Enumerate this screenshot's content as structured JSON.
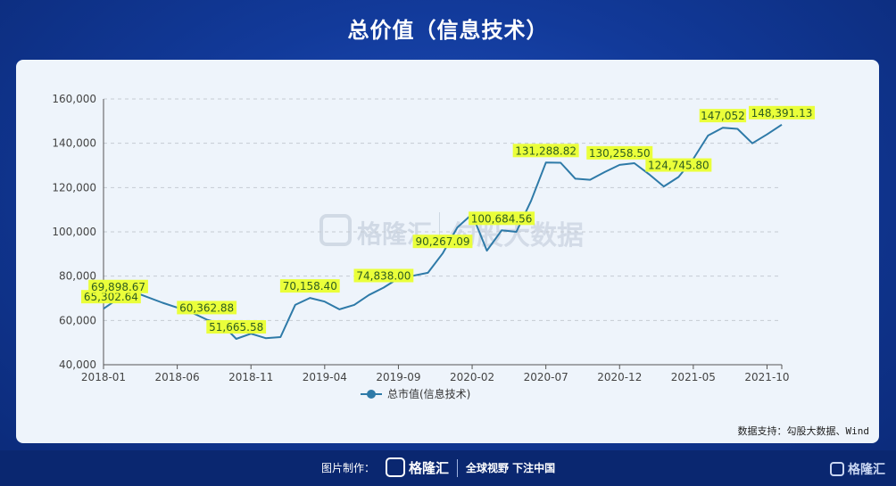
{
  "header": {
    "title": "总价值（信息技术）"
  },
  "source_note": "数据支持：勾股大数据、Wind",
  "footer": {
    "made_by": "图片制作：",
    "brand": "格隆汇",
    "slogan": "全球视野 下注中国"
  },
  "watermark": {
    "brand": "格隆汇",
    "brand2": "勾股大数据"
  },
  "colors": {
    "line": "#2e7aa8",
    "label_bg": "#eaff3a",
    "label_text": "#2e5c1f",
    "grid": "#c5cbd3"
  },
  "chart_data": {
    "type": "line",
    "title": "",
    "xlabel": "",
    "ylabel": "",
    "ylim": [
      40000,
      160000
    ],
    "yticks": [
      "40,000",
      "60,000",
      "80,000",
      "100,000",
      "120,000",
      "140,000",
      "160,000"
    ],
    "xticks": [
      "2018-01",
      "2018-06",
      "2018-11",
      "2019-04",
      "2019-09",
      "2020-02",
      "2020-07",
      "2020-12",
      "2021-05",
      "2021-10"
    ],
    "legend_position": "bottom",
    "grid": true,
    "series": [
      {
        "name": "总市值(信息技术)",
        "x_index": [
          0,
          1,
          2,
          3,
          4,
          5,
          6,
          7,
          8,
          9,
          10,
          11,
          12,
          13,
          14,
          15,
          16,
          17,
          18,
          19,
          20,
          21,
          22,
          23,
          24,
          25,
          26,
          27,
          28,
          29,
          30,
          31,
          32,
          33,
          34,
          35,
          36,
          37,
          38,
          39,
          40,
          41,
          42,
          43,
          44,
          45,
          46
        ],
        "values": [
          65302.64,
          69898.67,
          73000,
          70500,
          68000,
          65800,
          63500,
          60362.88,
          58500,
          51665.58,
          54000,
          52000,
          52500,
          67000,
          70158.4,
          68500,
          65000,
          67000,
          71500,
          74838,
          79000,
          80200,
          81500,
          90267.09,
          102000,
          108000,
          91500,
          100684.56,
          100000,
          114000,
          131288.82,
          131200,
          124000,
          123500,
          127000,
          130258.5,
          131000,
          126000,
          120500,
          124745.8,
          133000,
          143500,
          147052,
          146500,
          140000,
          144000,
          148391.13
        ],
        "labels": [
          {
            "index": 0,
            "text": "65,302.64"
          },
          {
            "index": 1,
            "text": "69,898.67"
          },
          {
            "index": 7,
            "text": "60,362.88"
          },
          {
            "index": 9,
            "text": "51,665.58"
          },
          {
            "index": 14,
            "text": "70,158.40"
          },
          {
            "index": 19,
            "text": "74,838.00"
          },
          {
            "index": 23,
            "text": "90,267.09"
          },
          {
            "index": 27,
            "text": "100,684.56"
          },
          {
            "index": 30,
            "text": "131,288.82"
          },
          {
            "index": 35,
            "text": "130,258.50"
          },
          {
            "index": 39,
            "text": "124,745.80"
          },
          {
            "index": 42,
            "text": "147,052"
          },
          {
            "index": 46,
            "text": "148,391.13"
          }
        ]
      }
    ]
  }
}
